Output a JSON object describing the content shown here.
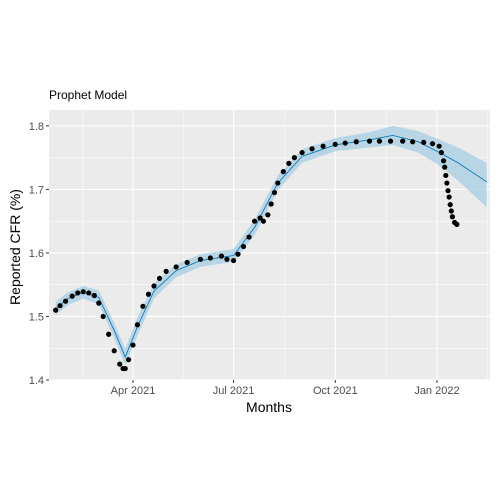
{
  "chart_data": {
    "type": "scatter",
    "title": "Prophet Model",
    "xlabel": "Months",
    "ylabel": "Reported CFR (%)",
    "xlim": [
      "2021-01-15",
      "2022-02-18"
    ],
    "ylim": [
      1.4,
      1.825
    ],
    "x_ticks": [
      {
        "date": "2021-04-01",
        "label": "Apr 2021"
      },
      {
        "date": "2021-07-01",
        "label": "Jul 2021"
      },
      {
        "date": "2021-10-01",
        "label": "Oct 2021"
      },
      {
        "date": "2022-01-01",
        "label": "Jan 2022"
      }
    ],
    "y_ticks": [
      1.4,
      1.5,
      1.6,
      1.7,
      1.8
    ],
    "y_tick_labels": [
      "1.4",
      "1.5",
      "1.6",
      "1.7",
      "1.8"
    ],
    "grid": true,
    "colors": {
      "panel": "#ebebeb",
      "grid": "#ffffff",
      "points": "#000000",
      "forecast_line": "#0072b2",
      "uncertainty_band": "#a6cee3"
    },
    "observed": {
      "x": [
        "2021-01-21",
        "2021-01-25",
        "2021-01-30",
        "2021-02-05",
        "2021-02-10",
        "2021-02-15",
        "2021-02-20",
        "2021-02-25",
        "2021-03-01",
        "2021-03-05",
        "2021-03-10",
        "2021-03-15",
        "2021-03-20",
        "2021-03-23",
        "2021-03-25",
        "2021-03-28",
        "2021-04-01",
        "2021-04-05",
        "2021-04-10",
        "2021-04-15",
        "2021-04-20",
        "2021-04-25",
        "2021-05-01",
        "2021-05-10",
        "2021-05-20",
        "2021-06-01",
        "2021-06-10",
        "2021-06-20",
        "2021-06-25",
        "2021-07-01",
        "2021-07-05",
        "2021-07-10",
        "2021-07-15",
        "2021-07-20",
        "2021-07-25",
        "2021-07-28",
        "2021-08-01",
        "2021-08-04",
        "2021-08-07",
        "2021-08-10",
        "2021-08-15",
        "2021-08-20",
        "2021-08-25",
        "2021-09-01",
        "2021-09-10",
        "2021-09-20",
        "2021-10-01",
        "2021-10-10",
        "2021-10-20",
        "2021-11-01",
        "2021-11-10",
        "2021-11-20",
        "2021-12-01",
        "2021-12-10",
        "2021-12-20",
        "2021-12-28",
        "2022-01-03",
        "2022-01-05",
        "2022-01-07",
        "2022-01-08",
        "2022-01-09",
        "2022-01-10",
        "2022-01-11",
        "2022-01-12",
        "2022-01-13",
        "2022-01-14",
        "2022-01-15",
        "2022-01-17",
        "2022-01-19"
      ],
      "y": [
        1.51,
        1.517,
        1.524,
        1.532,
        1.537,
        1.539,
        1.537,
        1.533,
        1.521,
        1.5,
        1.472,
        1.446,
        1.425,
        1.418,
        1.418,
        1.432,
        1.455,
        1.487,
        1.516,
        1.535,
        1.548,
        1.56,
        1.571,
        1.578,
        1.585,
        1.59,
        1.592,
        1.595,
        1.59,
        1.588,
        1.598,
        1.61,
        1.625,
        1.65,
        1.655,
        1.65,
        1.66,
        1.677,
        1.695,
        1.71,
        1.728,
        1.741,
        1.75,
        1.758,
        1.764,
        1.768,
        1.771,
        1.773,
        1.775,
        1.776,
        1.776,
        1.776,
        1.776,
        1.775,
        1.774,
        1.772,
        1.768,
        1.758,
        1.745,
        1.735,
        1.722,
        1.71,
        1.698,
        1.688,
        1.676,
        1.666,
        1.657,
        1.648,
        1.645
      ]
    },
    "forecast": {
      "x": [
        "2021-01-21",
        "2021-02-01",
        "2021-02-15",
        "2021-03-01",
        "2021-03-15",
        "2021-03-25",
        "2021-04-05",
        "2021-04-20",
        "2021-05-10",
        "2021-06-01",
        "2021-07-01",
        "2021-07-20",
        "2021-08-10",
        "2021-09-01",
        "2021-10-01",
        "2021-11-01",
        "2021-11-22",
        "2021-12-15",
        "2022-01-01",
        "2022-01-20",
        "2022-02-15"
      ],
      "y": [
        1.512,
        1.528,
        1.538,
        1.53,
        1.478,
        1.436,
        1.484,
        1.54,
        1.572,
        1.588,
        1.596,
        1.64,
        1.71,
        1.752,
        1.77,
        1.778,
        1.785,
        1.775,
        1.76,
        1.742,
        1.712
      ]
    },
    "band": {
      "x": [
        "2021-01-21",
        "2021-02-01",
        "2021-02-15",
        "2021-03-01",
        "2021-03-15",
        "2021-03-25",
        "2021-04-05",
        "2021-04-20",
        "2021-05-10",
        "2021-06-01",
        "2021-07-01",
        "2021-07-20",
        "2021-08-10",
        "2021-09-01",
        "2021-10-01",
        "2021-11-01",
        "2021-11-22",
        "2021-12-15",
        "2022-01-01",
        "2022-01-20",
        "2022-02-15"
      ],
      "lower": [
        1.502,
        1.518,
        1.528,
        1.519,
        1.466,
        1.424,
        1.47,
        1.528,
        1.562,
        1.578,
        1.586,
        1.628,
        1.698,
        1.742,
        1.76,
        1.766,
        1.77,
        1.758,
        1.74,
        1.714,
        1.672
      ],
      "upper": [
        1.523,
        1.538,
        1.548,
        1.541,
        1.49,
        1.449,
        1.498,
        1.552,
        1.582,
        1.598,
        1.606,
        1.652,
        1.722,
        1.763,
        1.781,
        1.79,
        1.8,
        1.792,
        1.78,
        1.766,
        1.742
      ]
    }
  }
}
